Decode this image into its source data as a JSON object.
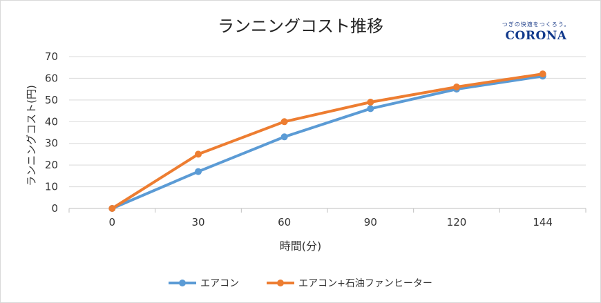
{
  "chart_data": {
    "type": "line",
    "title": "ランニングコスト推移",
    "xlabel": "時間(分)",
    "ylabel": "ランニングコスト(円)",
    "categories": [
      "0",
      "30",
      "60",
      "90",
      "120",
      "144"
    ],
    "ylim": [
      0,
      70
    ],
    "yticks": [
      "0",
      "10",
      "20",
      "30",
      "40",
      "50",
      "60",
      "70"
    ],
    "grid": true,
    "legend": "bottom",
    "series": [
      {
        "name": "エアコン",
        "values": [
          0,
          17,
          33,
          46,
          55,
          61
        ],
        "color": "#5b9bd5"
      },
      {
        "name": "エアコン+石油ファンヒーター",
        "values": [
          0,
          25,
          40,
          49,
          56,
          62
        ],
        "color": "#ed7d31"
      }
    ]
  },
  "logo": {
    "tagline": "つぎの快適をつくろう。",
    "name": "CORONA"
  }
}
